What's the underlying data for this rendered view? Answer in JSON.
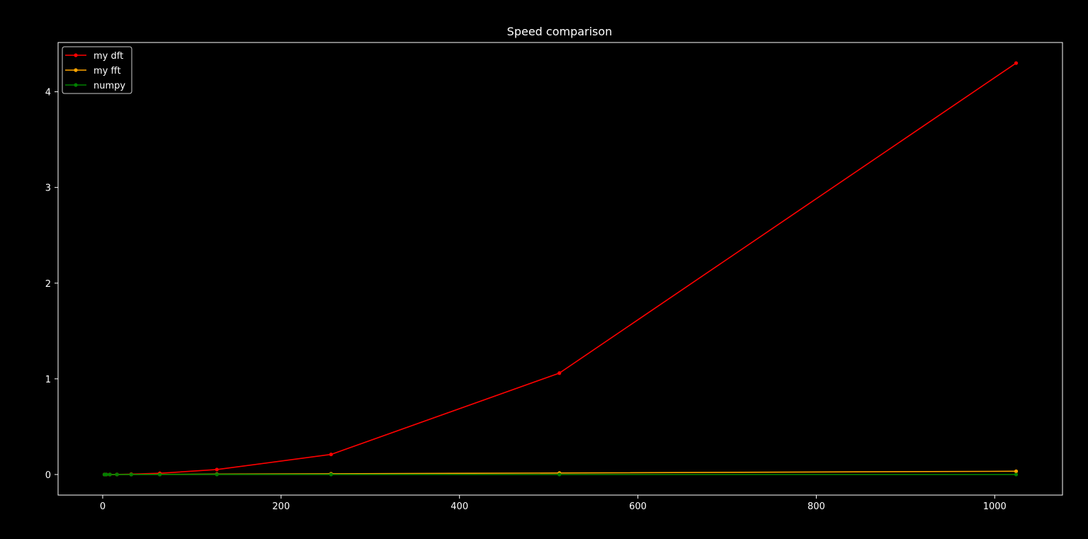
{
  "chart_data": {
    "type": "line",
    "title": "Speed comparison",
    "xlabel": "",
    "ylabel": "",
    "xlim": [
      -50,
      1076
    ],
    "ylim": [
      -0.215,
      4.515
    ],
    "xticks": [
      0,
      200,
      400,
      600,
      800,
      1000
    ],
    "yticks": [
      0,
      1,
      2,
      3,
      4
    ],
    "grid": false,
    "legend_position": "top-left",
    "x": [
      2,
      4,
      8,
      16,
      32,
      64,
      128,
      256,
      512,
      1024
    ],
    "series": [
      {
        "name": "my dft",
        "color": "#ff0000",
        "values": [
          3e-05,
          8e-05,
          0.0003,
          0.001,
          0.0035,
          0.013,
          0.052,
          0.21,
          1.06,
          4.3
        ]
      },
      {
        "name": "my fft",
        "color": "#ffa500",
        "values": [
          3e-05,
          6e-05,
          0.00015,
          0.0003,
          0.0007,
          0.0016,
          0.0035,
          0.0075,
          0.016,
          0.034
        ]
      },
      {
        "name": "numpy",
        "color": "#008000",
        "values": [
          1e-05,
          1e-05,
          1e-05,
          1e-05,
          1e-05,
          2e-05,
          2e-05,
          3e-05,
          5e-05,
          0.0001
        ]
      }
    ]
  }
}
